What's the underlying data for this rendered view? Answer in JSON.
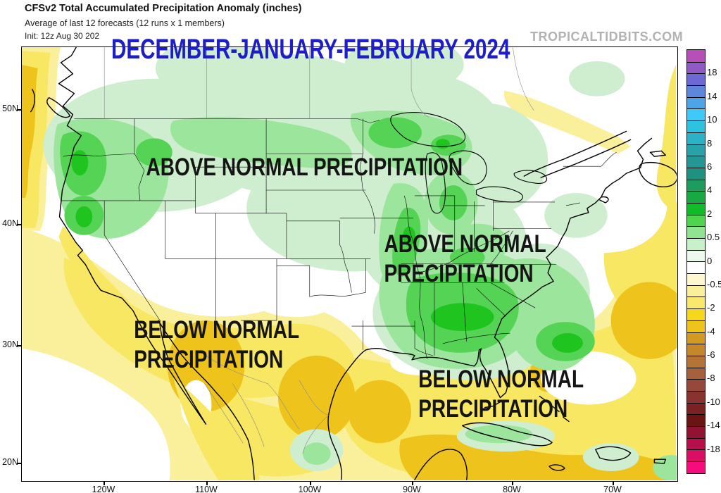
{
  "header": {
    "title": "CFSv2 Total Accumulated Precipitation Anomaly (inches)",
    "subtitle": "Average of last 12 forecasts (12 runs x 1 members)",
    "init_label": "Init: 12z Aug 30 202",
    "season_title": "DECEMBER-JANUARY-FEBRUARY 2024",
    "watermark": "TROPICALTIDBITS.COM"
  },
  "map": {
    "annotations": {
      "northwest": {
        "line1": "ABOVE NORMAL PRECIPITATION"
      },
      "east": {
        "line1": "ABOVE NORMAL",
        "line2": "PRECIPITATION"
      },
      "southwest": {
        "line1": "BELOW NORMAL",
        "line2": "PRECIPITATION"
      },
      "southeast": {
        "line1": "BELOW NORMAL",
        "line2": "PRECIPITATION"
      }
    },
    "axes": {
      "lat": [
        "50N",
        "40N",
        "30N",
        "20N"
      ],
      "lon": [
        "120W",
        "110W",
        "100W",
        "90W",
        "80W",
        "70W"
      ]
    }
  },
  "colorbar": {
    "tick_labels": [
      "18",
      "14",
      "10",
      "8",
      "6",
      "4",
      "2",
      "0.5",
      "0",
      "-0.5",
      "-2",
      "-4",
      "-6",
      "-8",
      "-10",
      "-14",
      "-18"
    ],
    "segment_colors": [
      "#b84fb8",
      "#8f5ac5",
      "#6d68d4",
      "#5e86da",
      "#4da5e8",
      "#3ec9f6",
      "#2ec2e0",
      "#2bb2c6",
      "#28a2a8",
      "#249693",
      "#1f9180",
      "#1e9c60",
      "#18a945",
      "#0fbb28",
      "#4fd44f",
      "#91e291",
      "#c9f1c9",
      "#ecf9ec",
      "#ffffff",
      "#fdf8d0",
      "#faf09c",
      "#f8e86e",
      "#f5d71e",
      "#eec31c",
      "#d29a20",
      "#c4872a",
      "#b37434",
      "#a4613c",
      "#96483a",
      "#883330",
      "#7a2222",
      "#6b1414",
      "#901334",
      "#b5104c",
      "#d90e64",
      "#f70c7e"
    ]
  },
  "colors": {
    "heading_blue": "#1e1ec8",
    "watermark_gray": "#b2b2b2",
    "green_pale": "#cfeecf",
    "green_light": "#9ce59c",
    "green_mid": "#55d355",
    "green_bright": "#1fc41f",
    "yellow_pale": "#faf09c",
    "yellow_mid": "#f7e763",
    "gold": "#eec31c"
  }
}
